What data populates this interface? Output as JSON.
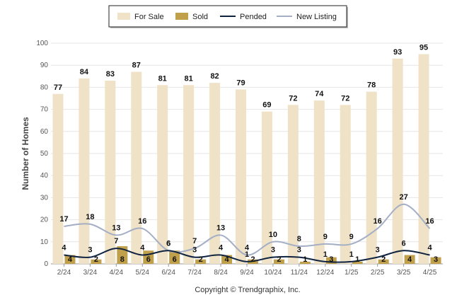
{
  "chart_data": {
    "type": "bar",
    "categories": [
      "2/24",
      "3/24",
      "4/24",
      "5/24",
      "6/24",
      "7/24",
      "8/24",
      "9/24",
      "10/24",
      "11/24",
      "12/24",
      "1/25",
      "2/25",
      "3/25",
      "4/25"
    ],
    "series": [
      {
        "name": "For Sale",
        "kind": "bar",
        "color": "#efe2c6",
        "values": [
          77,
          84,
          83,
          87,
          81,
          81,
          82,
          79,
          69,
          72,
          74,
          72,
          78,
          93,
          95
        ]
      },
      {
        "name": "Sold",
        "kind": "bar",
        "color": "#c1a04b",
        "values": [
          4,
          2,
          8,
          6,
          6,
          2,
          4,
          2,
          2,
          1,
          3,
          1,
          2,
          4,
          3
        ]
      },
      {
        "name": "Pended",
        "kind": "line",
        "color": "#0f2340",
        "values": [
          4,
          3,
          7,
          4,
          6,
          3,
          4,
          1,
          3,
          3,
          1,
          1,
          3,
          6,
          4
        ]
      },
      {
        "name": "New Listing",
        "kind": "line",
        "color": "#a4aec4",
        "values": [
          17,
          18,
          13,
          16,
          6,
          7,
          13,
          4,
          10,
          8,
          9,
          9,
          16,
          27,
          16
        ]
      }
    ],
    "xlabel": "",
    "ylabel": "Number of Homes",
    "ylim": [
      0,
      100
    ],
    "yticks": [
      0,
      10,
      20,
      30,
      40,
      50,
      60,
      70,
      80,
      90,
      100
    ],
    "grid": true,
    "legend": "top-center"
  },
  "footer": {
    "copyright": "Copyright © Trendgraphix, Inc."
  }
}
